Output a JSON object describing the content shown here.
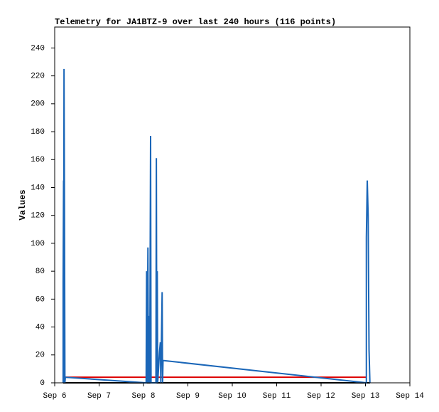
{
  "chart_data": {
    "type": "line",
    "title": "Telemetry for JA1BTZ-9 over last 240 hours (116 points)",
    "y_label": "Values",
    "xlim": [
      6,
      14
    ],
    "xticks": [
      {
        "value": 6,
        "label": "Sep 6"
      },
      {
        "value": 7,
        "label": "Sep 7"
      },
      {
        "value": 8,
        "label": "Sep 8"
      },
      {
        "value": 9,
        "label": "Sep 9"
      },
      {
        "value": 10,
        "label": "Sep 10"
      },
      {
        "value": 11,
        "label": "Sep 11"
      },
      {
        "value": 12,
        "label": "Sep 12"
      },
      {
        "value": 13,
        "label": "Sep 13"
      },
      {
        "value": 14,
        "label": "Sep 14"
      }
    ],
    "ylim": [
      0,
      255
    ],
    "yticks": [
      0,
      20,
      40,
      60,
      80,
      100,
      120,
      140,
      160,
      180,
      200,
      220,
      240
    ],
    "series": [
      {
        "color": "#000000",
        "x": [
          6.19,
          13.1
        ],
        "values": [
          0,
          0
        ]
      },
      {
        "color": "#dd0000",
        "x": [
          6.24,
          13.02
        ],
        "values": [
          4,
          4
        ]
      },
      {
        "color": "#1a66b8",
        "x": [
          6.19,
          6.19,
          6.2,
          6.2,
          6.21,
          6.22,
          6.23,
          6.24,
          8.06,
          8.07,
          8.08,
          8.1,
          8.11,
          8.13,
          8.14,
          8.16,
          8.17,
          8.28,
          8.29,
          8.3,
          8.31,
          8.32,
          8.36,
          8.38,
          8.39,
          8.42,
          8.43,
          8.44,
          13.02,
          13.02,
          13.04,
          13.06,
          13.07,
          13.08,
          13.1
        ],
        "values": [
          0,
          72,
          145,
          0,
          225,
          128,
          0,
          4,
          0,
          80,
          0,
          97,
          0,
          48,
          0,
          177,
          0,
          0,
          161,
          0,
          80,
          0,
          22,
          29,
          0,
          65,
          0,
          16,
          0,
          104,
          145,
          120,
          72,
          24,
          0
        ]
      }
    ]
  }
}
